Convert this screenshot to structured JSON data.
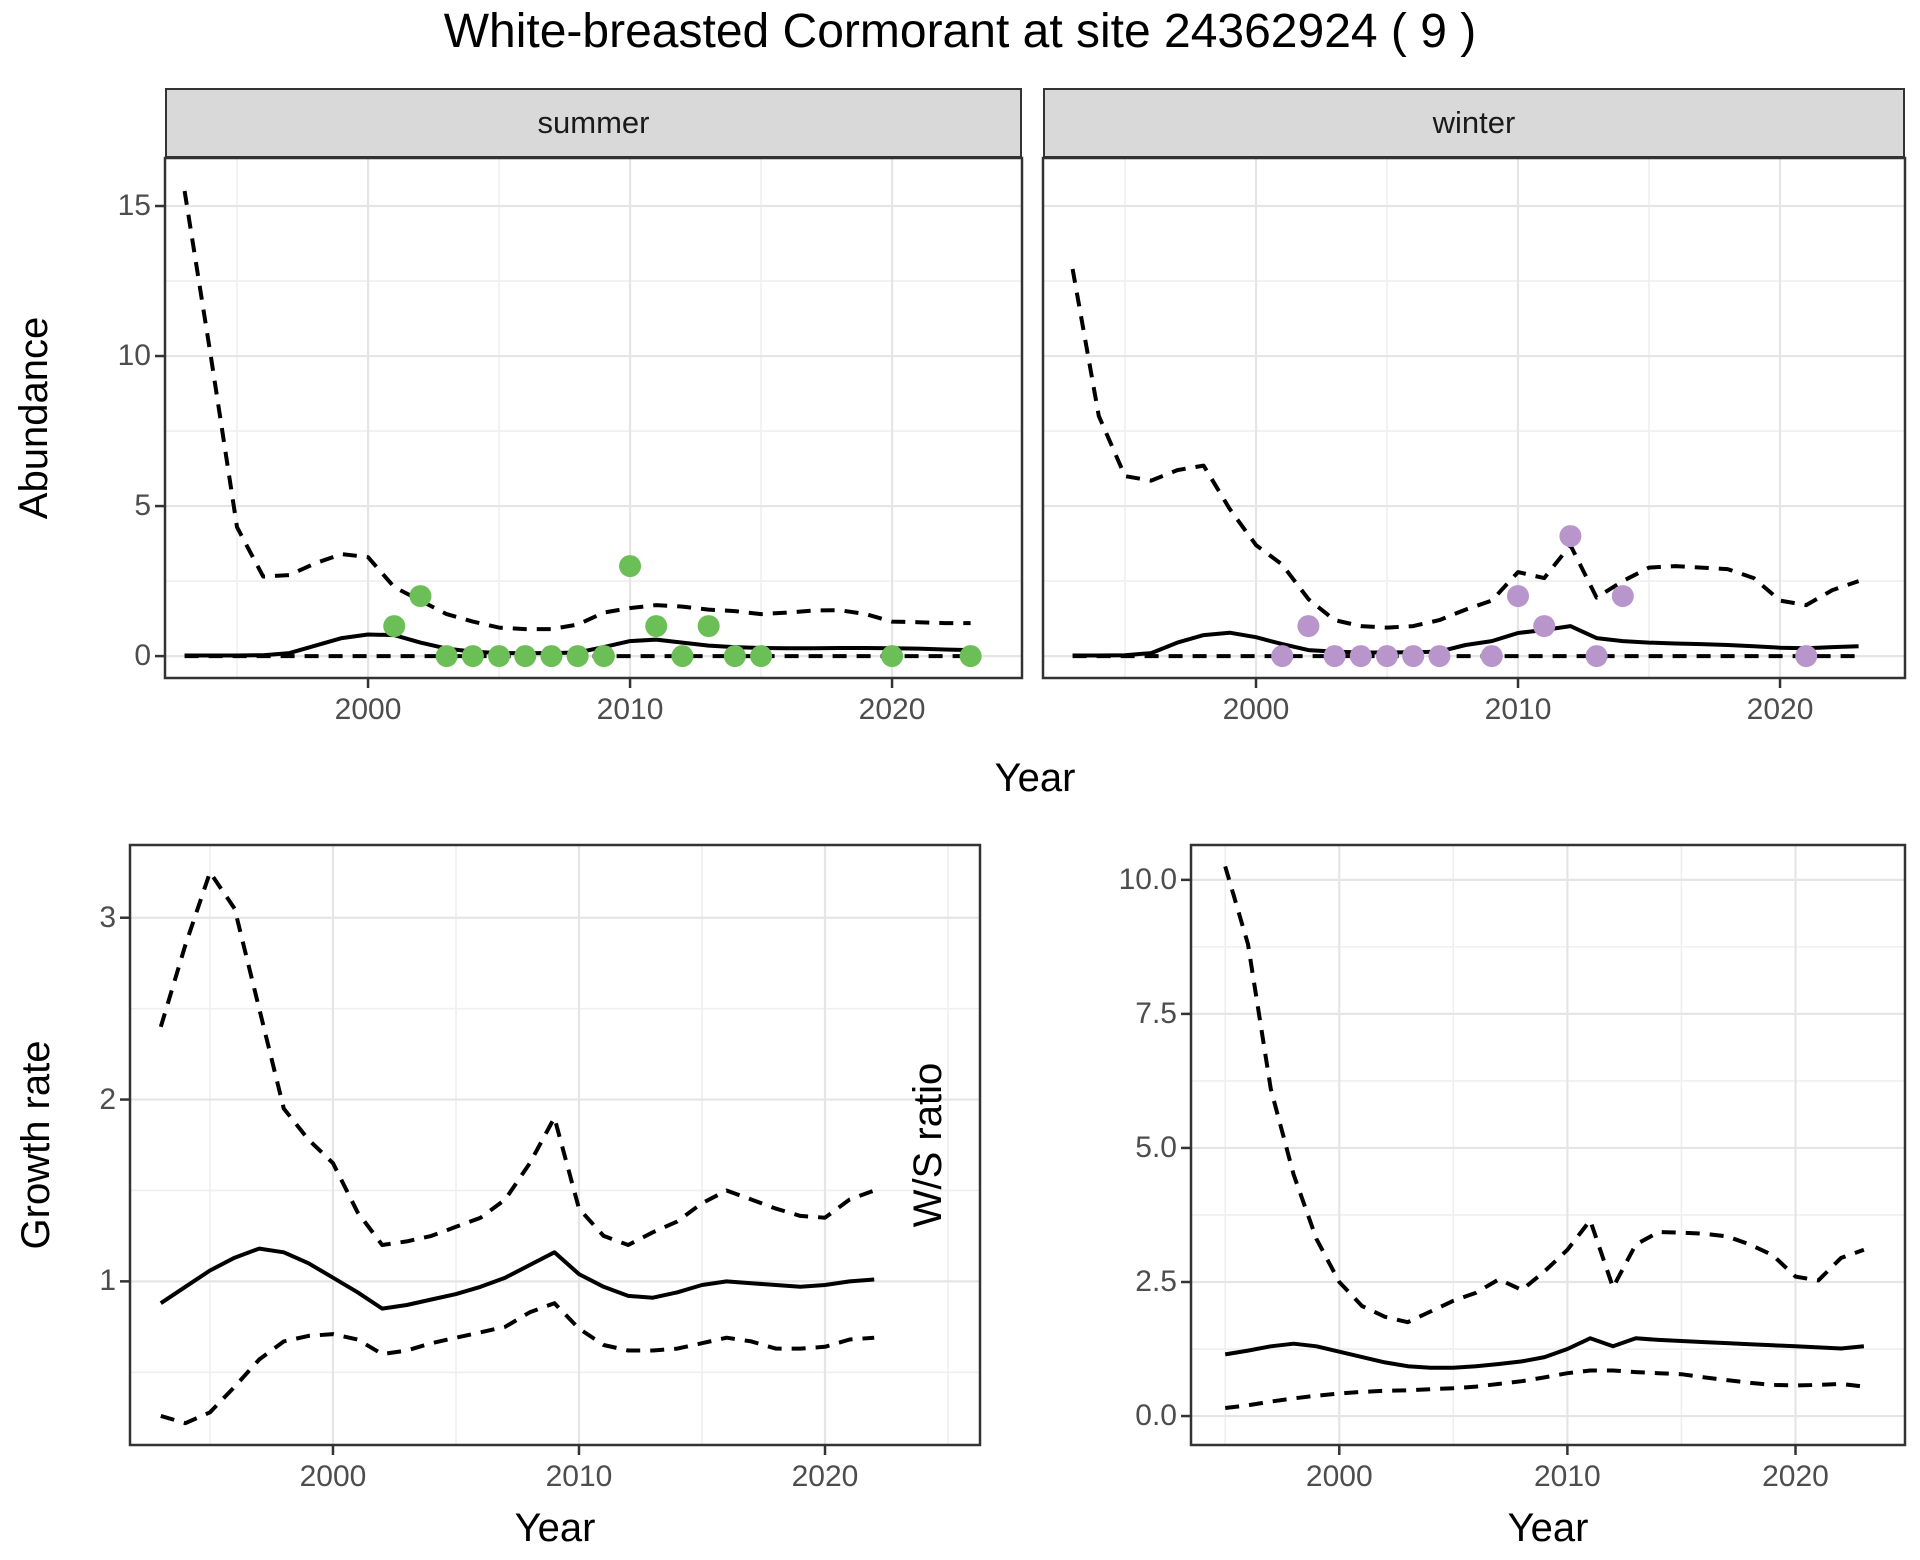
{
  "title": "White-breasted Cormorant at site 24362924 ( 9 )",
  "colors": {
    "summer_point": "#6cbe57",
    "winter_point": "#b896cb",
    "line": "#000000",
    "strip_bg": "#d9d9d9",
    "strip_border": "#333333",
    "panel_border": "#333333",
    "grid_major": "#e5e5e5",
    "grid_minor": "#efefef",
    "tick_mark": "#333333",
    "tick_text": "#4d4d4d"
  },
  "chart_data": [
    {
      "id": "abundance_summer",
      "type": "line",
      "facet_label": "summer",
      "xlabel": "Year",
      "ylabel": "Abundance",
      "xlim": [
        1992.25,
        2024.96
      ],
      "ylim": [
        -0.73,
        16.6
      ],
      "x_major_ticks": [
        2000,
        2010,
        2020
      ],
      "x_minor_ticks": [
        1995,
        2005,
        2015
      ],
      "y_major_ticks": [
        0,
        5,
        10,
        15
      ],
      "y_minor_ticks": [
        2.5,
        7.5,
        12.5
      ],
      "x_start": 1993,
      "series": [
        {
          "name": "lower_ci",
          "style": "dashed",
          "values": [
            0,
            0,
            0,
            0,
            0,
            0,
            0,
            0,
            0,
            0,
            0,
            0,
            0,
            0,
            0,
            0,
            0,
            0,
            0,
            0,
            0,
            0,
            0,
            0,
            0,
            0,
            0,
            0,
            0,
            0,
            0
          ]
        },
        {
          "name": "upper_ci",
          "style": "dashed",
          "values": [
            15.5,
            10.0,
            4.3,
            2.65,
            2.7,
            3.1,
            3.4,
            3.3,
            2.3,
            1.85,
            1.4,
            1.15,
            0.95,
            0.9,
            0.9,
            1.05,
            1.45,
            1.6,
            1.7,
            1.65,
            1.55,
            1.5,
            1.4,
            1.45,
            1.52,
            1.53,
            1.4,
            1.15,
            1.13,
            1.1,
            1.1
          ]
        },
        {
          "name": "mean",
          "style": "solid",
          "values": [
            0.02,
            0.02,
            0.02,
            0.03,
            0.1,
            0.35,
            0.6,
            0.72,
            0.7,
            0.45,
            0.25,
            0.15,
            0.1,
            0.1,
            0.1,
            0.12,
            0.3,
            0.5,
            0.55,
            0.45,
            0.35,
            0.3,
            0.27,
            0.26,
            0.26,
            0.27,
            0.27,
            0.26,
            0.25,
            0.22,
            0.2
          ]
        }
      ],
      "points": {
        "name": "summer observations",
        "color_key": "summer_point",
        "x": [
          2001,
          2002,
          2003,
          2004,
          2005,
          2006,
          2007,
          2008,
          2009,
          2010,
          2011,
          2012,
          2013,
          2014,
          2015,
          2020,
          2023
        ],
        "y": [
          1,
          2,
          0,
          0,
          0,
          0,
          0,
          0,
          0,
          3,
          1,
          0,
          1,
          0,
          0,
          0,
          0
        ]
      }
    },
    {
      "id": "abundance_winter",
      "type": "line",
      "facet_label": "winter",
      "xlabel": "Year",
      "ylabel": "Abundance",
      "xlim": [
        1991.87,
        2024.77
      ],
      "ylim": [
        -0.73,
        16.6
      ],
      "x_major_ticks": [
        2000,
        2010,
        2020
      ],
      "x_minor_ticks": [
        1995,
        2005,
        2015
      ],
      "y_major_ticks": [
        0,
        5,
        10,
        15
      ],
      "y_minor_ticks": [
        2.5,
        7.5,
        12.5
      ],
      "x_start": 1993,
      "series": [
        {
          "name": "lower_ci",
          "style": "dashed",
          "values": [
            0,
            0,
            0,
            0,
            0,
            0,
            0,
            0,
            0,
            0,
            0,
            0,
            0,
            0,
            0,
            0,
            0,
            0,
            0,
            0,
            0,
            0,
            0,
            0,
            0,
            0,
            0,
            0,
            0,
            0,
            0
          ]
        },
        {
          "name": "upper_ci",
          "style": "dashed",
          "values": [
            12.9,
            8.0,
            6.0,
            5.85,
            6.2,
            6.35,
            4.9,
            3.7,
            3.05,
            1.9,
            1.2,
            1.0,
            0.95,
            1.0,
            1.2,
            1.55,
            1.85,
            2.8,
            2.6,
            3.7,
            1.95,
            2.5,
            2.95,
            3.0,
            2.95,
            2.9,
            2.6,
            1.85,
            1.7,
            2.2,
            2.5
          ]
        },
        {
          "name": "mean",
          "style": "solid",
          "values": [
            0.02,
            0.02,
            0.03,
            0.1,
            0.45,
            0.7,
            0.78,
            0.63,
            0.4,
            0.2,
            0.15,
            0.12,
            0.12,
            0.13,
            0.15,
            0.37,
            0.5,
            0.77,
            0.87,
            1.0,
            0.6,
            0.5,
            0.45,
            0.42,
            0.4,
            0.37,
            0.33,
            0.28,
            0.26,
            0.3,
            0.33
          ]
        }
      ],
      "points": {
        "name": "winter observations",
        "color_key": "winter_point",
        "x": [
          2001,
          2002,
          2003,
          2004,
          2005,
          2006,
          2007,
          2009,
          2010,
          2011,
          2012,
          2013,
          2014,
          2021
        ],
        "y": [
          0,
          1,
          0,
          0,
          0,
          0,
          0,
          0,
          2,
          1,
          4,
          0,
          2,
          0
        ]
      }
    },
    {
      "id": "growth_rate",
      "type": "line",
      "facet_label": "",
      "xlabel": "Year",
      "ylabel": "Growth rate",
      "xlim": [
        1991.75,
        2026.3
      ],
      "ylim": [
        0.1,
        3.4
      ],
      "x_major_ticks": [
        2000,
        2010,
        2020
      ],
      "x_minor_ticks": [
        1995,
        2005,
        2015,
        2025
      ],
      "y_major_ticks": [
        1,
        2,
        3
      ],
      "y_minor_ticks": [
        0.5,
        1.5,
        2.5
      ],
      "x_start": 1993,
      "series": [
        {
          "name": "lower_ci",
          "style": "dashed",
          "values": [
            0.26,
            0.22,
            0.28,
            0.42,
            0.57,
            0.67,
            0.7,
            0.71,
            0.68,
            0.6,
            0.62,
            0.66,
            0.69,
            0.72,
            0.75,
            0.83,
            0.88,
            0.74,
            0.65,
            0.62,
            0.62,
            0.63,
            0.66,
            0.69,
            0.67,
            0.63,
            0.63,
            0.64,
            0.68,
            0.69
          ]
        },
        {
          "name": "upper_ci",
          "style": "dashed",
          "values": [
            2.4,
            2.85,
            3.25,
            3.05,
            2.5,
            1.95,
            1.78,
            1.65,
            1.38,
            1.2,
            1.22,
            1.25,
            1.3,
            1.35,
            1.45,
            1.65,
            1.9,
            1.4,
            1.25,
            1.2,
            1.27,
            1.33,
            1.43,
            1.5,
            1.45,
            1.4,
            1.36,
            1.35,
            1.45,
            1.5
          ]
        },
        {
          "name": "mean",
          "style": "solid",
          "values": [
            0.88,
            0.97,
            1.06,
            1.13,
            1.18,
            1.16,
            1.1,
            1.02,
            0.94,
            0.85,
            0.87,
            0.9,
            0.93,
            0.97,
            1.02,
            1.09,
            1.16,
            1.04,
            0.97,
            0.92,
            0.91,
            0.94,
            0.98,
            1.0,
            0.99,
            0.98,
            0.97,
            0.98,
            1.0,
            1.01
          ]
        }
      ],
      "points": null
    },
    {
      "id": "ws_ratio",
      "type": "line",
      "facet_label": "",
      "xlabel": "Year",
      "ylabel": "W/S ratio",
      "xlim": [
        1993.5,
        2024.8
      ],
      "ylim": [
        -0.54,
        10.65
      ],
      "x_major_ticks": [
        2000,
        2010,
        2020
      ],
      "x_minor_ticks": [
        1995,
        2005,
        2015
      ],
      "y_major_ticks": [
        0.0,
        2.5,
        5.0,
        7.5,
        10.0
      ],
      "y_minor_ticks": [
        1.25,
        3.75,
        6.25,
        8.75
      ],
      "y_tick_decimals": 1,
      "x_start": 1995,
      "series": [
        {
          "name": "lower_ci",
          "style": "dashed",
          "values": [
            0.15,
            0.2,
            0.27,
            0.33,
            0.38,
            0.42,
            0.45,
            0.47,
            0.48,
            0.5,
            0.52,
            0.55,
            0.6,
            0.65,
            0.72,
            0.8,
            0.85,
            0.85,
            0.82,
            0.8,
            0.78,
            0.72,
            0.67,
            0.62,
            0.58,
            0.57,
            0.58,
            0.6,
            0.55
          ]
        },
        {
          "name": "upper_ci",
          "style": "dashed",
          "values": [
            10.25,
            8.8,
            6.1,
            4.5,
            3.3,
            2.5,
            2.05,
            1.85,
            1.75,
            1.95,
            2.15,
            2.3,
            2.55,
            2.35,
            2.7,
            3.1,
            3.65,
            2.4,
            3.2,
            3.43,
            3.42,
            3.4,
            3.35,
            3.2,
            3.0,
            2.6,
            2.53,
            2.95,
            3.1
          ]
        },
        {
          "name": "mean",
          "style": "solid",
          "values": [
            1.15,
            1.22,
            1.3,
            1.35,
            1.3,
            1.2,
            1.1,
            1.0,
            0.93,
            0.9,
            0.9,
            0.93,
            0.97,
            1.02,
            1.1,
            1.25,
            1.45,
            1.3,
            1.45,
            1.42,
            1.4,
            1.38,
            1.36,
            1.34,
            1.32,
            1.3,
            1.28,
            1.26,
            1.3
          ]
        }
      ],
      "points": null
    }
  ]
}
